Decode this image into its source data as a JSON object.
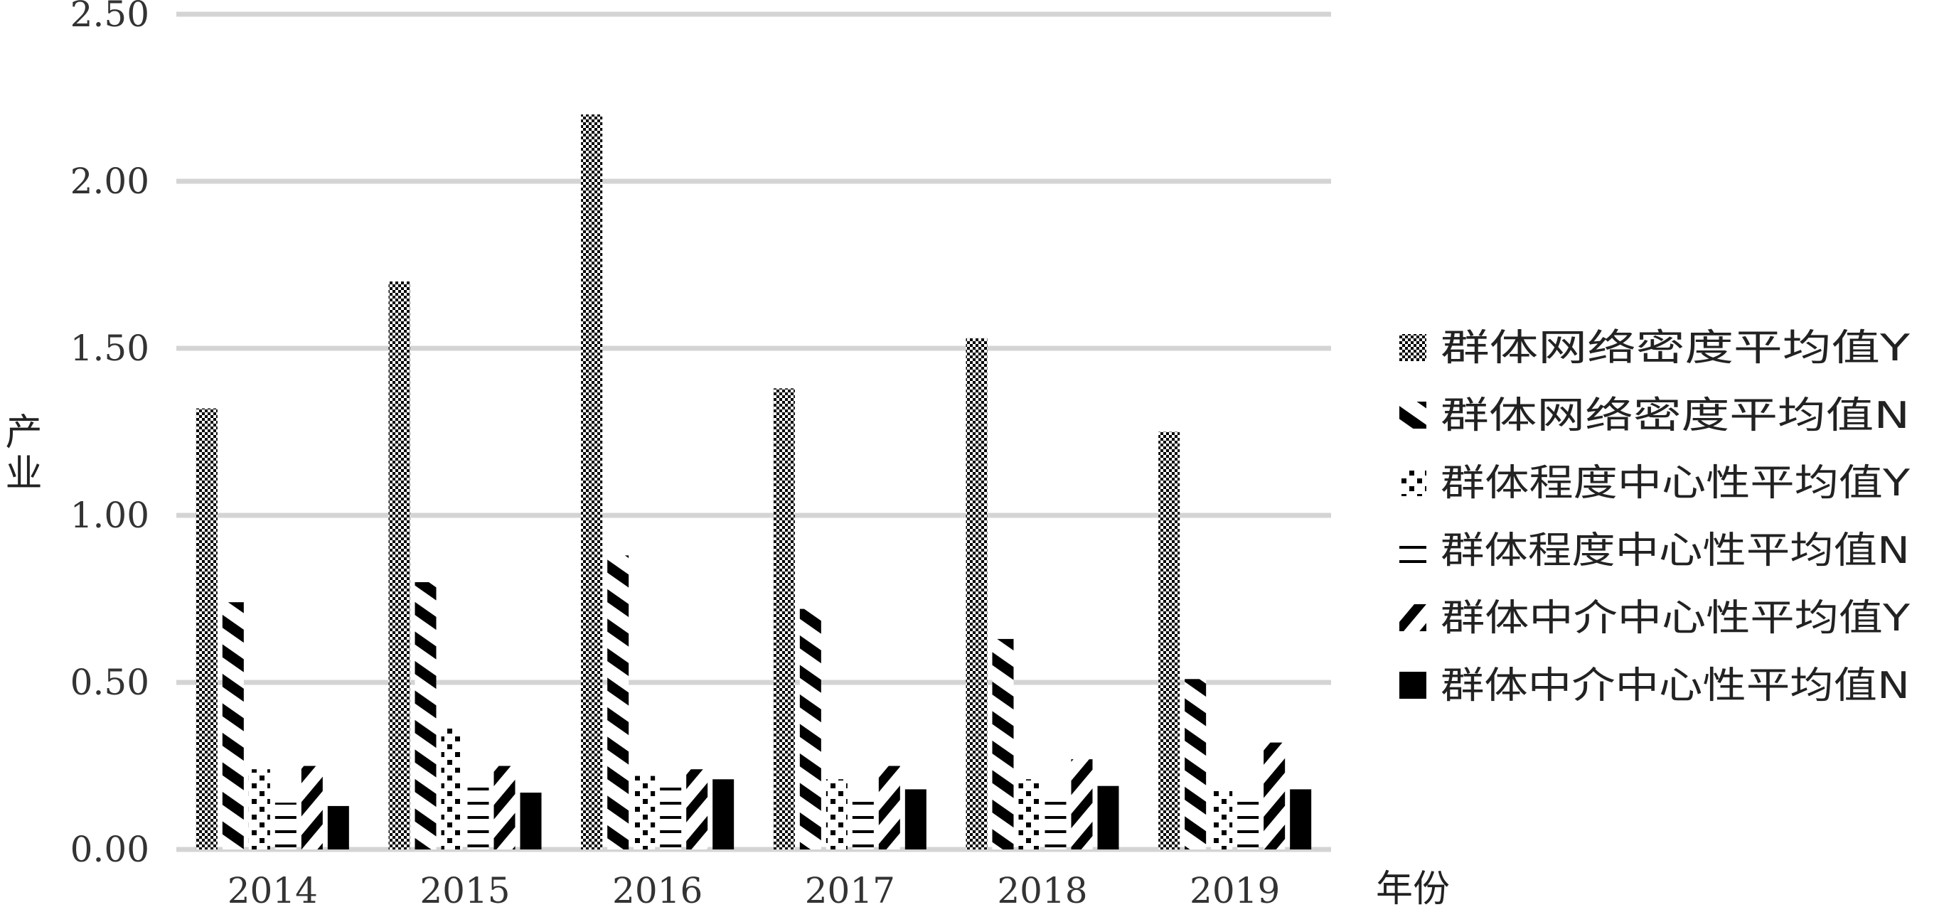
{
  "chart_data": {
    "type": "bar",
    "xlabel": "年份",
    "ylabel": "产业",
    "ylim": [
      0,
      2.5
    ],
    "yticks": [
      "0.00",
      "0.50",
      "1.00",
      "1.50",
      "2.00",
      "2.50"
    ],
    "grid": "horizontal",
    "legend_position": "right",
    "categories": [
      "2014",
      "2015",
      "2016",
      "2017",
      "2018",
      "2019"
    ],
    "series": [
      {
        "name": "群体网络密度平均值Y",
        "pattern": "checker",
        "values": [
          1.32,
          1.7,
          2.2,
          1.38,
          1.53,
          1.25
        ]
      },
      {
        "name": "群体网络密度平均值N",
        "pattern": "diag-up",
        "values": [
          0.74,
          0.8,
          0.88,
          0.72,
          0.63,
          0.51
        ]
      },
      {
        "name": "群体程度中心性平均值Y",
        "pattern": "dots",
        "values": [
          0.24,
          0.37,
          0.22,
          0.21,
          0.21,
          0.18
        ]
      },
      {
        "name": "群体程度中心性平均值N",
        "pattern": "hlines",
        "values": [
          0.14,
          0.19,
          0.19,
          0.16,
          0.15,
          0.15
        ]
      },
      {
        "name": "群体中介中心性平均值Y",
        "pattern": "diag-down",
        "values": [
          0.25,
          0.25,
          0.24,
          0.25,
          0.27,
          0.32
        ]
      },
      {
        "name": "群体中介中心性平均值N",
        "pattern": "solid",
        "values": [
          0.13,
          0.17,
          0.21,
          0.18,
          0.19,
          0.18
        ]
      }
    ]
  }
}
